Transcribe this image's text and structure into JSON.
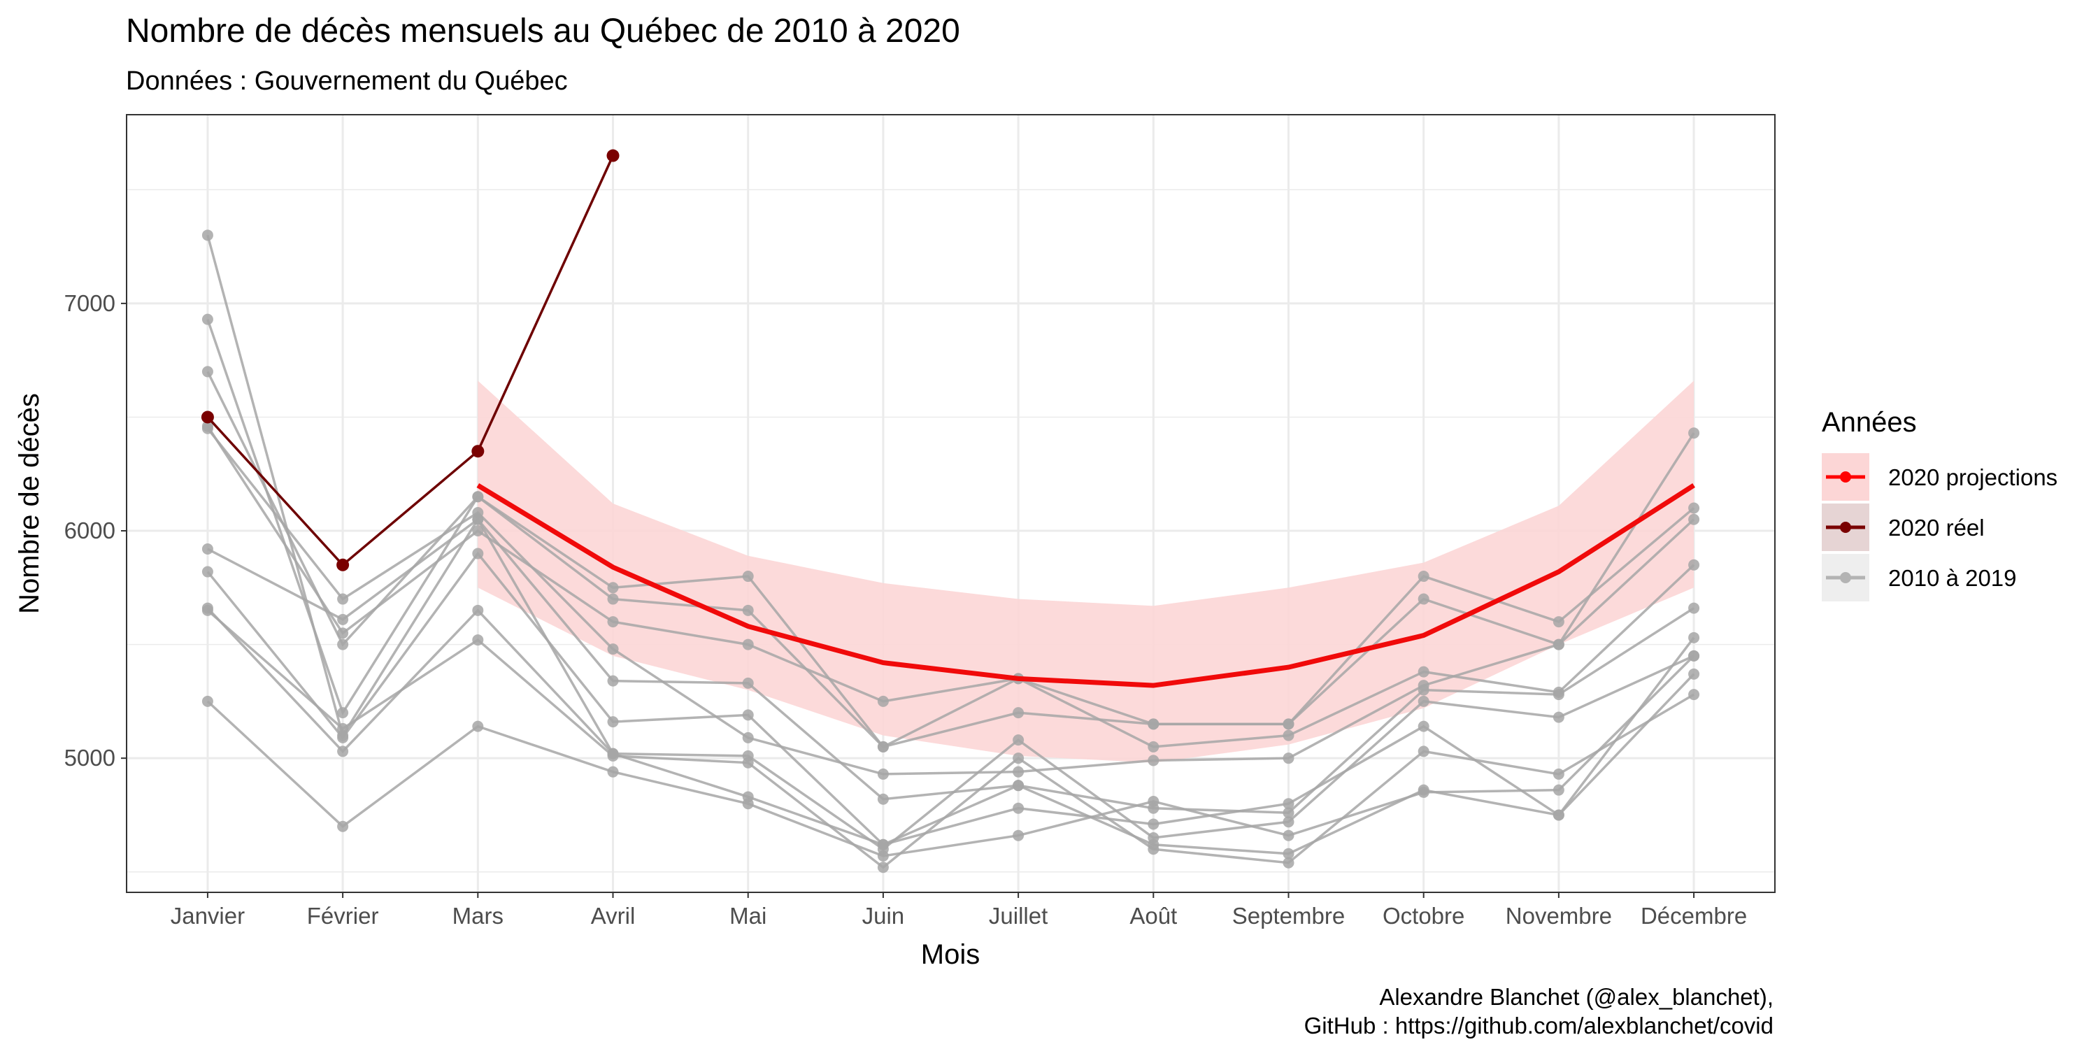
{
  "chart_data": {
    "type": "line",
    "title": "Nombre de décès mensuels au Québec de 2010 à 2020",
    "subtitle": "Données : Gouvernement du Québec",
    "xlabel": "Mois",
    "ylabel": "Nombre de décès",
    "categories": [
      "Janvier",
      "Février",
      "Mars",
      "Avril",
      "Mai",
      "Juin",
      "Juillet",
      "Août",
      "Septembre",
      "Octobre",
      "Novembre",
      "Décembre"
    ],
    "ylim": [
      4410,
      7830
    ],
    "yticks": [
      5000,
      6000,
      7000
    ],
    "grid": true,
    "legend": {
      "title": "Années",
      "position": "right",
      "entries": [
        {
          "label": "2020 projections",
          "color": "#ff0000"
        },
        {
          "label": "2020 réel",
          "color": "#7a0000"
        },
        {
          "label": "2010 à 2019",
          "color": "#b3b3b3"
        }
      ]
    },
    "historical_series": [
      [
        7300,
        5100,
        6050,
        5020,
        4830,
        4620,
        4880,
        4620,
        4580,
        4860,
        4750,
        5370
      ],
      [
        6930,
        5200,
        6150,
        5750,
        5800,
        5050,
        5200,
        5150,
        5150,
        5800,
        5600,
        6100
      ],
      [
        6700,
        5500,
        6150,
        5700,
        5650,
        5050,
        5350,
        5150,
        5150,
        5700,
        5500,
        6050
      ],
      [
        6460,
        5550,
        6000,
        5600,
        5500,
        5250,
        5350,
        5050,
        5100,
        5380,
        5290,
        5850
      ],
      [
        6450,
        5700,
        6080,
        5480,
        5090,
        4930,
        4940,
        4990,
        5000,
        5320,
        5500,
        6430
      ],
      [
        5920,
        5610,
        6050,
        5340,
        5330,
        4820,
        4880,
        4780,
        4760,
        5300,
        5280,
        5660
      ],
      [
        5820,
        5090,
        5900,
        5160,
        5190,
        4620,
        4780,
        4710,
        4800,
        5140,
        4750,
        5530
      ],
      [
        5660,
        5030,
        5650,
        5020,
        5010,
        4600,
        5080,
        4650,
        4720,
        5250,
        5180,
        5450
      ],
      [
        5650,
        5130,
        5520,
        5010,
        4980,
        4520,
        5000,
        4600,
        4540,
        5030,
        4930,
        5280
      ],
      [
        5250,
        4700,
        5140,
        4940,
        4800,
        4570,
        4660,
        4810,
        4660,
        4850,
        4860,
        5450
      ]
    ],
    "projection": {
      "name": "2020 projections",
      "start_index": 2,
      "values": [
        6200,
        5840,
        5580,
        5420,
        5350,
        5320,
        5400,
        5540,
        5820,
        6200
      ],
      "lower": [
        5750,
        5450,
        5300,
        5100,
        5010,
        4980,
        5060,
        5220,
        5500,
        5750
      ],
      "upper": [
        6660,
        6120,
        5890,
        5770,
        5700,
        5670,
        5750,
        5860,
        6110,
        6660
      ]
    },
    "actual_2020": {
      "name": "2020 réel",
      "values": [
        6500,
        5850,
        6350,
        7650
      ]
    },
    "caption": [
      "Alexandre Blanchet (@alex_blanchet),",
      "GitHub : https://github.com/alexblanchet/covid"
    ]
  }
}
